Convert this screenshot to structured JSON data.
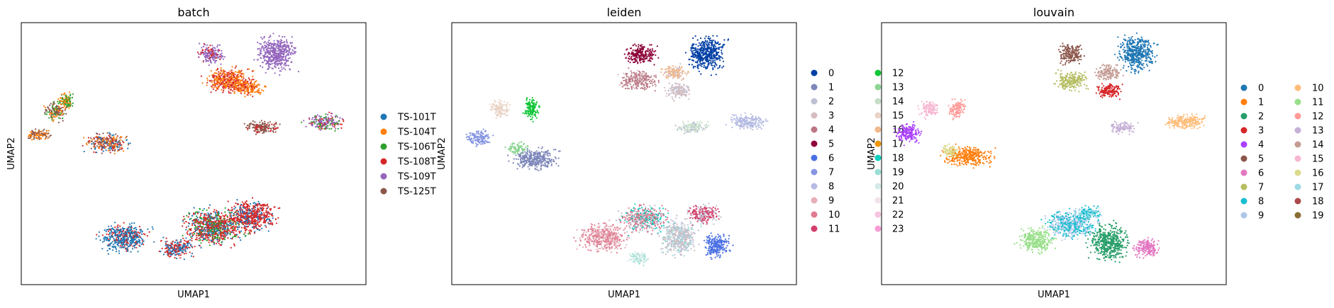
{
  "chart_data": [
    {
      "type": "scatter",
      "title": "batch",
      "xlabel": "UMAP1",
      "ylabel": "UMAP2",
      "grid": false,
      "legend_position": "right",
      "series": [
        {
          "name": "TS-101T",
          "color": "#1f77b4"
        },
        {
          "name": "TS-104T",
          "color": "#ff7f0e"
        },
        {
          "name": "TS-106T",
          "color": "#2ca02c"
        },
        {
          "name": "TS-108T",
          "color": "#d62728"
        },
        {
          "name": "TS-109T",
          "color": "#9467bd"
        },
        {
          "name": "TS-125T",
          "color": "#8c564b"
        }
      ]
    },
    {
      "type": "scatter",
      "title": "leiden",
      "xlabel": "UMAP1",
      "ylabel": "UMAP2",
      "grid": false,
      "legend_position": "right",
      "series": [
        {
          "name": "0",
          "color": "#023fa5"
        },
        {
          "name": "1",
          "color": "#7d87b9"
        },
        {
          "name": "2",
          "color": "#bec1d4"
        },
        {
          "name": "3",
          "color": "#d6bcc0"
        },
        {
          "name": "4",
          "color": "#bb7784"
        },
        {
          "name": "5",
          "color": "#8e063b"
        },
        {
          "name": "6",
          "color": "#4a6fe3"
        },
        {
          "name": "7",
          "color": "#8595e1"
        },
        {
          "name": "8",
          "color": "#b5bbe3"
        },
        {
          "name": "9",
          "color": "#e6afb9"
        },
        {
          "name": "10",
          "color": "#e07b91"
        },
        {
          "name": "11",
          "color": "#d33f6a"
        },
        {
          "name": "12",
          "color": "#11c638"
        },
        {
          "name": "13",
          "color": "#8dd593"
        },
        {
          "name": "14",
          "color": "#c6dec7"
        },
        {
          "name": "15",
          "color": "#ead3c6"
        },
        {
          "name": "16",
          "color": "#f0b98d"
        },
        {
          "name": "17",
          "color": "#ef9708"
        },
        {
          "name": "18",
          "color": "#0fcfc0"
        },
        {
          "name": "19",
          "color": "#9cded6"
        },
        {
          "name": "20",
          "color": "#d5eae7"
        },
        {
          "name": "21",
          "color": "#f3e1eb"
        },
        {
          "name": "22",
          "color": "#f6c4e1"
        },
        {
          "name": "23",
          "color": "#f79cd4"
        }
      ]
    },
    {
      "type": "scatter",
      "title": "louvain",
      "xlabel": "UMAP1",
      "ylabel": "UMAP2",
      "grid": false,
      "legend_position": "right",
      "series": [
        {
          "name": "0",
          "color": "#1f77b4"
        },
        {
          "name": "1",
          "color": "#ff7f0e"
        },
        {
          "name": "2",
          "color": "#279e68"
        },
        {
          "name": "3",
          "color": "#d62728"
        },
        {
          "name": "4",
          "color": "#aa40fc"
        },
        {
          "name": "5",
          "color": "#8c564b"
        },
        {
          "name": "6",
          "color": "#e377c2"
        },
        {
          "name": "7",
          "color": "#b5bd61"
        },
        {
          "name": "8",
          "color": "#17becf"
        },
        {
          "name": "9",
          "color": "#aec7e8"
        },
        {
          "name": "10",
          "color": "#ffbb78"
        },
        {
          "name": "11",
          "color": "#98df8a"
        },
        {
          "name": "12",
          "color": "#ff9896"
        },
        {
          "name": "13",
          "color": "#c5b0d5"
        },
        {
          "name": "14",
          "color": "#c49c94"
        },
        {
          "name": "15",
          "color": "#f7b6d2"
        },
        {
          "name": "16",
          "color": "#dbdb8d"
        },
        {
          "name": "17",
          "color": "#9edae5"
        },
        {
          "name": "18",
          "color": "#ad494a"
        },
        {
          "name": "19",
          "color": "#8c6d31"
        }
      ]
    }
  ]
}
